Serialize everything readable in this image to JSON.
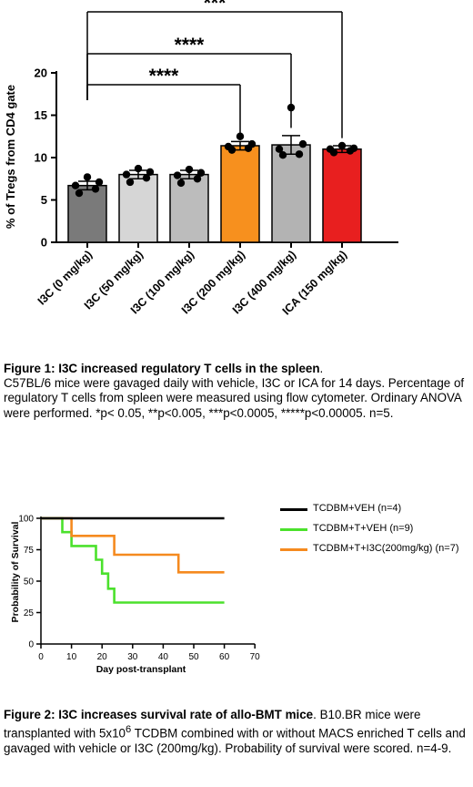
{
  "figure1": {
    "caption_title": "Figure 1: I3C increased regulatory T cells in the spleen",
    "caption_title_end": ".",
    "caption_text": "C57BL/6 mice were gavaged daily with vehicle, I3C or ICA for 14 days. Percentage of regulatory T cells from spleen were measured using flow cytometer. Ordinary ANOVA were performed. *p< 0.05, **p<0.005, ***p<0.0005, *****p<0.00005. n=5."
  },
  "figure2": {
    "caption_title": "Figure 2: I3C increases survival rate of allo-BMT mice",
    "caption_title_end": ".",
    "caption_text_pre": " B10.BR mice were transplanted with 5x10",
    "caption_sup": "6",
    "caption_text_post": " TCDBM combined with or without MACS enriched T cells  and gavaged with vehicle or I3C (200mg/kg). Probability of survival were scored. n=4-9."
  },
  "chart_data": [
    {
      "type": "bar",
      "ylabel": "% of Tregs from CD4 gate",
      "ylim": [
        0,
        20
      ],
      "yticks": [
        0,
        5,
        10,
        15,
        20
      ],
      "categories": [
        "I3C (0 mg/kg)",
        "I3C (50 mg/kg)",
        "I3C (100 mg/kg)",
        "I3C (200 mg/kg)",
        "I3C (400 mg/kg)",
        "ICA (150 mg/kg)"
      ],
      "values": [
        6.7,
        8.0,
        8.0,
        11.4,
        11.5,
        11.0
      ],
      "errors": [
        0.5,
        0.5,
        0.5,
        0.5,
        1.1,
        0.4
      ],
      "points": [
        [
          5.8,
          6.3,
          6.7,
          7.1,
          7.7
        ],
        [
          7.1,
          7.6,
          8.0,
          8.3,
          8.7
        ],
        [
          7.0,
          7.5,
          7.9,
          8.2,
          8.6
        ],
        [
          10.9,
          11.1,
          11.3,
          11.6,
          12.5
        ],
        [
          10.3,
          10.4,
          11.0,
          11.6,
          15.9
        ],
        [
          10.6,
          10.8,
          11.0,
          11.1,
          11.4
        ]
      ],
      "colors": [
        "#7a7a7a",
        "#d6d6d6",
        "#bcbcbc",
        "#f7901e",
        "#b3b3b3",
        "#e81f1f"
      ],
      "significance": [
        {
          "label": "****",
          "from": 0,
          "to": 3
        },
        {
          "label": "****",
          "from": 0,
          "to": 4
        },
        {
          "label": "***",
          "from": 0,
          "to": 5
        }
      ],
      "grid": false
    },
    {
      "type": "line",
      "step": true,
      "xlabel": "Day post-transplant",
      "ylabel": "Probability of Survival",
      "xlim": [
        0,
        70
      ],
      "ylim": [
        0,
        100
      ],
      "xticks": [
        0,
        10,
        20,
        30,
        40,
        50,
        60,
        70
      ],
      "yticks": [
        0,
        25,
        50,
        75,
        100
      ],
      "legend_position": "right",
      "grid": false,
      "series": [
        {
          "name": "TCDBM+VEH",
          "n_label": "(n=4)",
          "color": "#000000",
          "x": [
            0,
            60
          ],
          "y": [
            100,
            100
          ]
        },
        {
          "name": "TCDBM+T+VEH",
          "n_label": "(n=9)",
          "color": "#4be12c",
          "x": [
            0,
            7,
            7,
            10,
            10,
            18,
            18,
            20,
            20,
            22,
            22,
            24,
            24,
            60
          ],
          "y": [
            100,
            100,
            89,
            89,
            78,
            78,
            67,
            67,
            56,
            56,
            44,
            44,
            33,
            33
          ]
        },
        {
          "name": "TCDBM+T+I3C(200mg/kg)",
          "n_label": "(n=7)",
          "color": "#f58a1f",
          "x": [
            0,
            10,
            10,
            24,
            24,
            45,
            45,
            60
          ],
          "y": [
            100,
            100,
            86,
            86,
            71,
            71,
            57,
            57
          ]
        }
      ]
    }
  ]
}
